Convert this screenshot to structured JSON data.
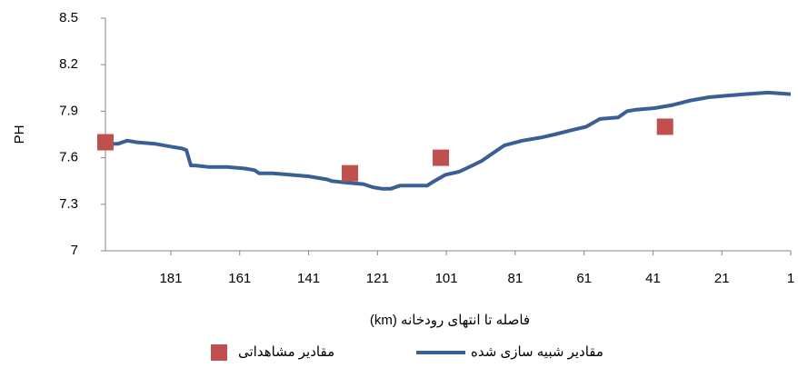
{
  "chart_data": {
    "type": "line",
    "y_label": "PH",
    "x_label": "فاصله تا انتهای رودخانه (km)",
    "xlim": [
      200,
      1
    ],
    "xticks": [
      181,
      161,
      141,
      121,
      101,
      81,
      61,
      41,
      21,
      1
    ],
    "ylim": [
      7,
      8.5
    ],
    "yticks": [
      7,
      7.3,
      7.6,
      7.9,
      8.2,
      8.5
    ],
    "grid": false,
    "legend": "bottom",
    "series": [
      {
        "name": "مقادیر شبیه سازی شده",
        "color": "#3a5f96",
        "style": "line",
        "x": [
          200,
          196.3,
          193.7,
          191.0,
          185.7,
          180.5,
          177.8,
          176.5,
          175.2,
          173.9,
          169.9,
          164.6,
          159.4,
          156.7,
          155.4,
          151.4,
          146.2,
          140.9,
          135.6,
          134.3,
          130.3,
          125.1,
          122.4,
          119.8,
          117.1,
          114.5,
          110.5,
          107.9,
          106.6,
          105.2,
          101.3,
          97.3,
          93.4,
          90.7,
          86.8,
          84.1,
          78.9,
          73.6,
          69.6,
          64.3,
          60.4,
          56.4,
          51.1,
          48.5,
          45.9,
          40.6,
          35.3,
          30.0,
          24.8,
          19.5,
          14.2,
          7.6,
          1
        ],
        "values": [
          7.69,
          7.69,
          7.71,
          7.7,
          7.69,
          7.67,
          7.66,
          7.65,
          7.55,
          7.55,
          7.54,
          7.54,
          7.53,
          7.52,
          7.5,
          7.5,
          7.49,
          7.48,
          7.46,
          7.45,
          7.44,
          7.43,
          7.41,
          7.4,
          7.4,
          7.42,
          7.42,
          7.42,
          7.42,
          7.44,
          7.49,
          7.51,
          7.55,
          7.58,
          7.64,
          7.68,
          7.71,
          7.73,
          7.75,
          7.78,
          7.8,
          7.85,
          7.86,
          7.9,
          7.91,
          7.92,
          7.94,
          7.97,
          7.99,
          8.0,
          8.01,
          8.02,
          8.01
        ]
      },
      {
        "name": "مقادیر مشاهداتی",
        "color": "#c0504d",
        "style": "marker",
        "x": [
          200,
          129,
          102.6,
          37.5
        ],
        "values": [
          7.7,
          7.5,
          7.6,
          7.8
        ]
      }
    ]
  }
}
